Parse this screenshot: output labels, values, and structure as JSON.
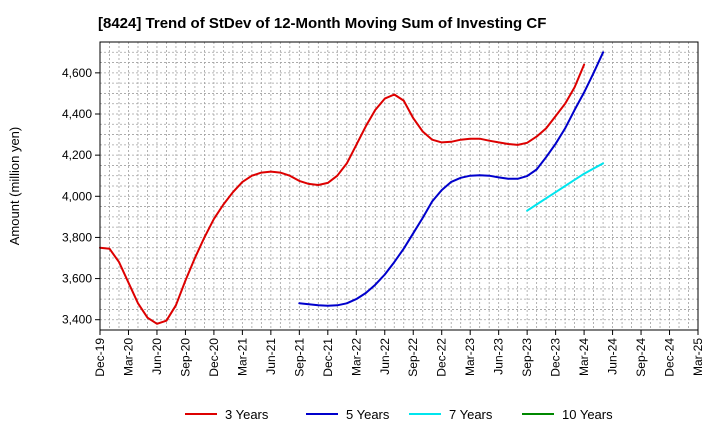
{
  "chart_data": {
    "type": "line",
    "title": "[8424]  Trend of StDev of 12-Month Moving Sum of Investing CF",
    "ylabel": "Amount (million yen)",
    "xlabel": "",
    "ylim": [
      3350,
      4750
    ],
    "yticks": [
      3400,
      3600,
      3800,
      4000,
      4200,
      4400,
      4600
    ],
    "ytick_labels": [
      "3,400",
      "3,600",
      "3,800",
      "4,000",
      "4,200",
      "4,400",
      "4,600"
    ],
    "x_start": "Dec-19",
    "x_end": "Mar-25",
    "xtick_labels": [
      "Dec-19",
      "Mar-20",
      "Jun-20",
      "Sep-20",
      "Dec-20",
      "Mar-21",
      "Jun-21",
      "Sep-21",
      "Dec-21",
      "Mar-22",
      "Jun-22",
      "Sep-22",
      "Dec-22",
      "Mar-23",
      "Jun-23",
      "Sep-23",
      "Dec-23",
      "Mar-24",
      "Jun-24",
      "Sep-24",
      "Dec-24",
      "Mar-25"
    ],
    "grid": true,
    "legend_position": "bottom",
    "series": [
      {
        "name": "3 Years",
        "color": "#dd0000",
        "start": "Dec-19",
        "values": [
          3750,
          3745,
          3680,
          3580,
          3480,
          3410,
          3380,
          3395,
          3470,
          3590,
          3700,
          3800,
          3890,
          3960,
          4020,
          4070,
          4100,
          4115,
          4120,
          4115,
          4100,
          4075,
          4060,
          4055,
          4065,
          4100,
          4160,
          4250,
          4340,
          4420,
          4475,
          4495,
          4465,
          4380,
          4315,
          4275,
          4262,
          4265,
          4275,
          4280,
          4280,
          4270,
          4262,
          4254,
          4250,
          4260,
          4290,
          4330,
          4390,
          4450,
          4530,
          4640
        ]
      },
      {
        "name": "5 Years",
        "color": "#0000cc",
        "start": "Sep-21",
        "values": [
          3480,
          3475,
          3470,
          3468,
          3470,
          3480,
          3500,
          3530,
          3570,
          3620,
          3680,
          3745,
          3820,
          3895,
          3975,
          4030,
          4070,
          4090,
          4100,
          4102,
          4100,
          4092,
          4085,
          4085,
          4098,
          4130,
          4190,
          4255,
          4330,
          4420,
          4505,
          4600,
          4700
        ]
      },
      {
        "name": "7 Years",
        "color": "#00e5ee",
        "start": "Sep-23",
        "values": [
          3930,
          3960,
          3990,
          4020,
          4050,
          4080,
          4110,
          4135,
          4160
        ]
      },
      {
        "name": "10 Years",
        "color": "#008800",
        "start": "Mar-24",
        "values": []
      }
    ]
  }
}
